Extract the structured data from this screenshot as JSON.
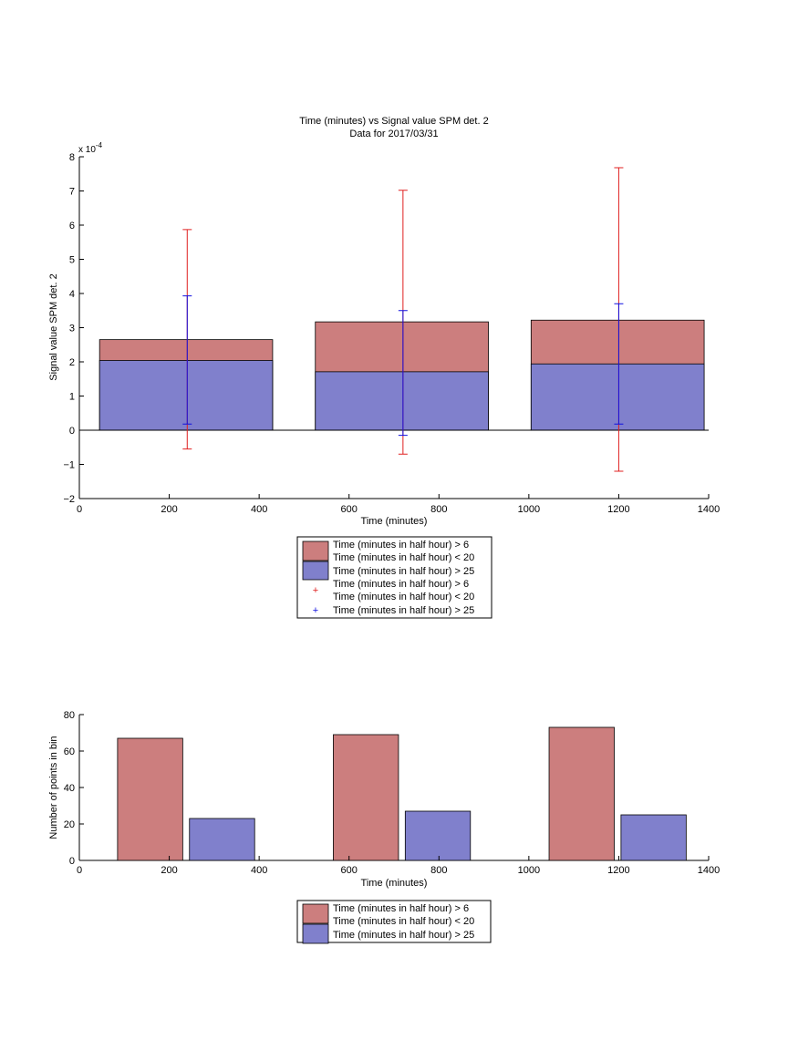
{
  "figure": {
    "title": "Time (minutes) vs Signal value SPM det. 2",
    "subtitle": "Data for 2017/03/31"
  },
  "colors": {
    "red_fill": "#cc7e7e",
    "blue_fill": "#8080cc",
    "red_err": "#e02020",
    "blue_err": "#1010e0"
  },
  "legend_top": {
    "entries": [
      {
        "line1": "Time (minutes in half hour) > 6",
        "line2": "Time (minutes in half hour) < 20",
        "marker": "red-patch"
      },
      {
        "line1": "Time (minutes in half hour) > 25",
        "marker": "blue-patch"
      },
      {
        "line1": "Time (minutes in half hour) > 6",
        "line2": "Time (minutes in half hour) < 20",
        "marker": "red-plus"
      },
      {
        "line1": "Time (minutes in half hour) > 25",
        "marker": "blue-plus"
      }
    ]
  },
  "legend_bottom": {
    "entries": [
      {
        "line1": "Time (minutes in half hour) > 6",
        "line2": "Time (minutes in half hour) < 20",
        "marker": "red-patch"
      },
      {
        "line1": "Time (minutes in half hour) > 25",
        "marker": "blue-patch"
      }
    ]
  },
  "chart_data": [
    {
      "type": "bar",
      "title": "Time (minutes) vs Signal value SPM det. 2",
      "subtitle": "Data for 2017/03/31",
      "xlabel": "Time (minutes)",
      "ylabel": "Signal value SPM det. 2",
      "exponent_label": "x 10",
      "exponent_power": "-4",
      "xlim": [
        0,
        1400
      ],
      "ylim": [
        -2,
        8
      ],
      "xticks": [
        0,
        200,
        400,
        600,
        800,
        1000,
        1200,
        1400
      ],
      "yticks": [
        -2,
        -1,
        0,
        1,
        2,
        3,
        4,
        5,
        6,
        7,
        8
      ],
      "ytick_labels": [
        "−2",
        "−1",
        "0",
        "1",
        "2",
        "3",
        "4",
        "5",
        "6",
        "7",
        "8"
      ],
      "bins": [
        {
          "x_start": 45,
          "x_end": 430,
          "center": 240
        },
        {
          "x_start": 525,
          "x_end": 910,
          "center": 720
        },
        {
          "x_start": 1005,
          "x_end": 1390,
          "center": 1200
        }
      ],
      "series": [
        {
          "name": "Time (minutes in half hour) > 6 / Time (minutes in half hour) < 20",
          "values": [
            2.65,
            3.17,
            3.22
          ],
          "err_low": [
            -0.55,
            -0.7,
            -1.2
          ],
          "err_high": [
            5.87,
            7.02,
            7.68
          ]
        },
        {
          "name": "Time (minutes in half hour) > 25",
          "values": [
            2.04,
            1.71,
            1.94
          ],
          "err_low": [
            0.18,
            -0.15,
            0.18
          ],
          "err_high": [
            3.93,
            3.5,
            3.7
          ]
        }
      ]
    },
    {
      "type": "bar",
      "xlabel": "Time (minutes)",
      "ylabel": "Number of points in bin",
      "xlim": [
        0,
        1400
      ],
      "ylim": [
        0,
        80
      ],
      "xticks": [
        0,
        200,
        400,
        600,
        800,
        1000,
        1200,
        1400
      ],
      "yticks": [
        0,
        20,
        40,
        60,
        80
      ],
      "series": [
        {
          "name": "Time (minutes in half hour) > 6 / Time (minutes in half hour) < 20",
          "x_start": [
            85,
            565,
            1045
          ],
          "x_end": [
            230,
            710,
            1190
          ],
          "values": [
            67,
            69,
            73
          ]
        },
        {
          "name": "Time (minutes in half hour) > 25",
          "x_start": [
            245,
            725,
            1205
          ],
          "x_end": [
            390,
            870,
            1350
          ],
          "values": [
            23,
            27,
            25
          ]
        }
      ]
    }
  ]
}
